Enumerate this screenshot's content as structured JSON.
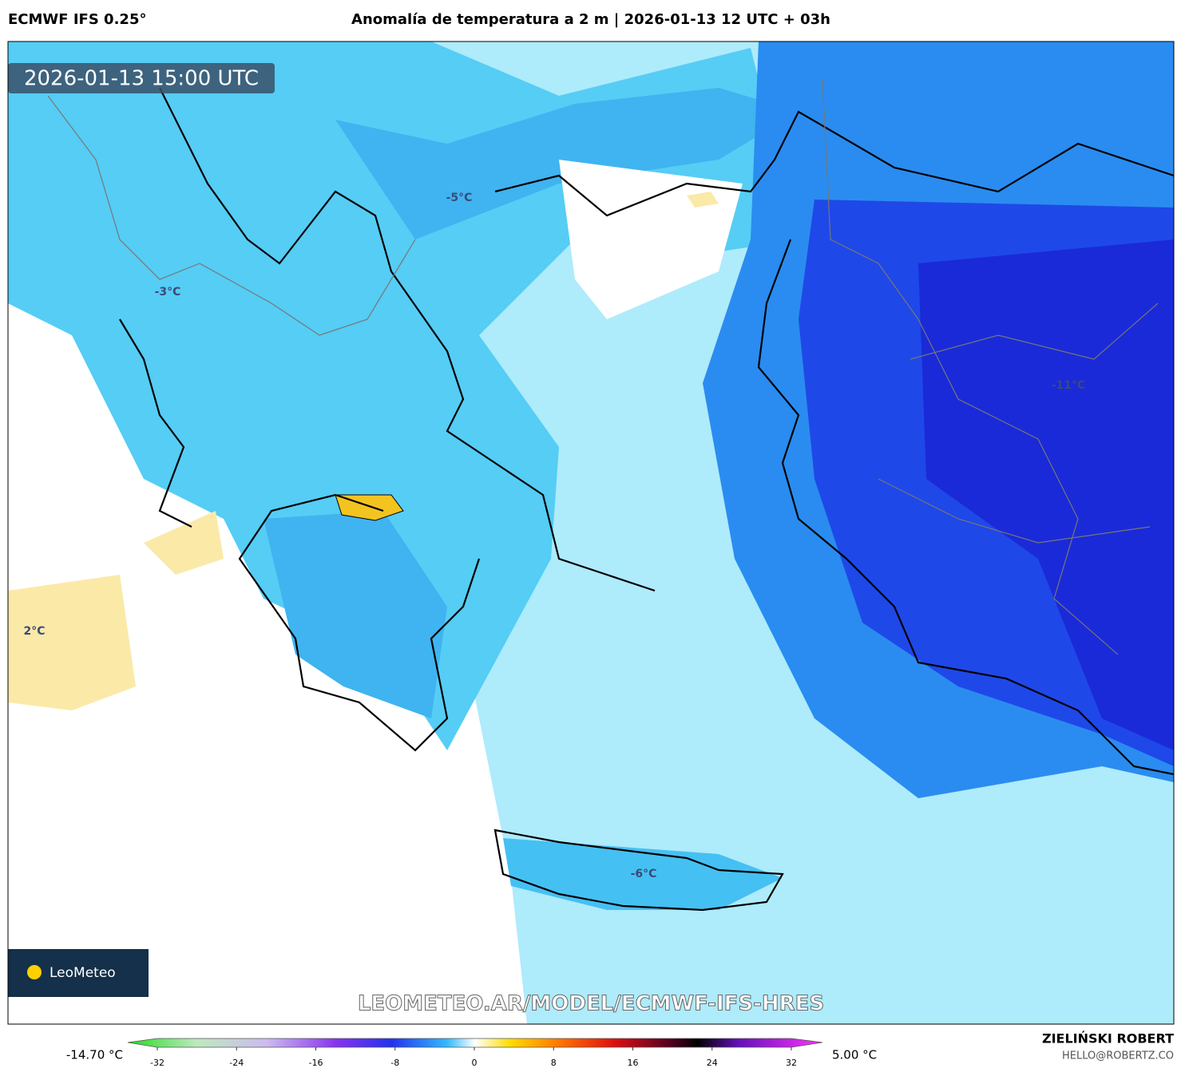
{
  "header": {
    "model": "ECMWF IFS 0.25°",
    "title": "Anomalía de temperatura a 2 m | 2026-01-13 12 UTC + 03h"
  },
  "map": {
    "valid_time": "2026-01-13 15:00 UTC",
    "labels": [
      "-5°C",
      "-3°C",
      "-11°C",
      "-6°C",
      "2°C"
    ],
    "logo": "LeoMeteo",
    "watermark": "LEOMETEO.AR/MODEL/ECMWF-IFS-HRES"
  },
  "colorbar": {
    "min_label": "-14.70 °C",
    "max_label": "5.00 °C",
    "ticks": [
      -32,
      -24,
      -16,
      -8,
      0,
      8,
      16,
      24,
      32
    ]
  },
  "footer": {
    "author": "ZIELIŃSKI ROBERT",
    "email": "HELLO@ROBERTZ.CO"
  }
}
